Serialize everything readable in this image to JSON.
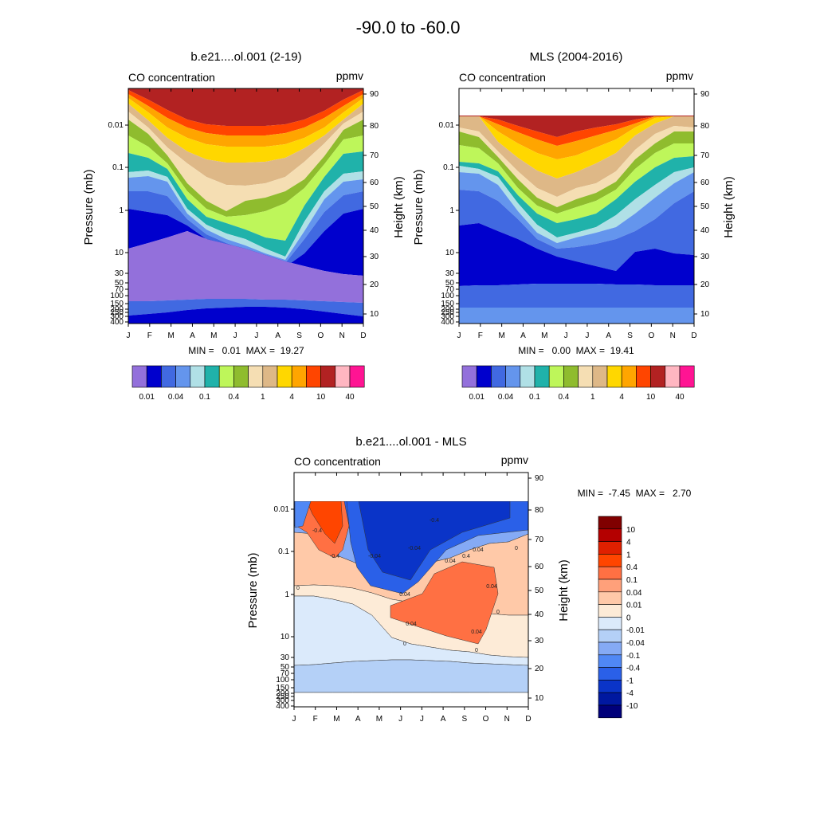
{
  "main_title": "-90.0 to -60.0",
  "months": [
    "J",
    "F",
    "M",
    "A",
    "M",
    "J",
    "J",
    "A",
    "S",
    "O",
    "N",
    "D"
  ],
  "pressure_ticks": [
    "0.01",
    "0.1",
    "1",
    "10",
    "30",
    "50",
    "70",
    "100",
    "150",
    "200",
    "250",
    "300",
    "400"
  ],
  "height_ticks": [
    "90",
    "80",
    "70",
    "60",
    "50",
    "40",
    "30",
    "20",
    "10"
  ],
  "colors": {
    "abs": [
      "#9370db",
      "#0000cd",
      "#4169e1",
      "#6495ed",
      "#b0e0e6",
      "#20b2aa",
      "#bef65a",
      "#8fbc2e",
      "#f5deb3",
      "#deb887",
      "#ffd700",
      "#ffa500",
      "#ff4500",
      "#b22222",
      "#ffb6c1",
      "#ff1493"
    ],
    "diff": [
      "#800000",
      "#b40000",
      "#e02000",
      "#ff4500",
      "#ff7043",
      "#ffa07a",
      "#ffc9a8",
      "#fdebd7",
      "#dbeafb",
      "#b4d0f7",
      "#85aaf5",
      "#5088f5",
      "#2a60e8",
      "#0a34c8",
      "#0018a0",
      "#00007a"
    ]
  },
  "panels": [
    {
      "title": "b.e21....ol.001 (2-19)",
      "left_label": "CO concentration",
      "right_label": "ppmv",
      "y_label": "Pressure (mb)",
      "y2_label": "Height (km)",
      "stats": "MIN =   0.01  MAX =  19.27"
    },
    {
      "title": "MLS (2004-2016)",
      "left_label": "CO concentration",
      "right_label": "ppmv",
      "y_label": "Pressure (mb)",
      "y2_label": "Height (km)",
      "stats": "MIN =   0.00  MAX =  19.41"
    },
    {
      "title": "b.e21....ol.001 - MLS",
      "left_label": "CO concentration",
      "right_label": "ppmv",
      "y_label": "Pressure (mb)",
      "y2_label": "Height (km)",
      "stats": "MIN =  -7.45  MAX =   2.70"
    }
  ],
  "colorbar_abs_labels": [
    "0.01",
    "0.04",
    "0.1",
    "0.4",
    "1",
    "4",
    "10",
    "40"
  ],
  "colorbar_diff_labels": [
    "10",
    "4",
    "1",
    "0.4",
    "0.1",
    "0.04",
    "0.01",
    "0",
    "-0.01",
    "-0.04",
    "-0.1",
    "-0.4",
    "-1",
    "-4",
    "-10"
  ],
  "contour_labels": [
    "-0.4",
    "-0.4",
    "-0.04",
    "-0.04",
    "-0.4",
    "0.04",
    "0.4",
    "0.04",
    "0.04",
    "0.04",
    "0.04",
    "0",
    "0",
    "0",
    "0.04",
    "0",
    "0"
  ],
  "chart_data": [
    {
      "type": "heatmap",
      "title": "b.e21....ol.001 (2-19)",
      "subtitle": "CO concentration",
      "units": "ppmv",
      "x": [
        "J",
        "F",
        "M",
        "A",
        "M",
        "J",
        "J",
        "A",
        "S",
        "O",
        "N",
        "D"
      ],
      "xlabel": "",
      "ylabel": "Pressure (mb)",
      "y2label": "Height (km)",
      "ylim": [
        400,
        0.002
      ],
      "y_scale": "log",
      "contour_levels": [
        0.01,
        0.02,
        0.04,
        0.06,
        0.1,
        0.2,
        0.4,
        0.6,
        1,
        2,
        4,
        6,
        10,
        20,
        40
      ],
      "min": 0.01,
      "max": 19.27
    },
    {
      "type": "heatmap",
      "title": "MLS (2004-2016)",
      "subtitle": "CO concentration",
      "units": "ppmv",
      "x": [
        "J",
        "F",
        "M",
        "A",
        "M",
        "J",
        "J",
        "A",
        "S",
        "O",
        "N",
        "D"
      ],
      "xlabel": "",
      "ylabel": "Pressure (mb)",
      "y2label": "Height (km)",
      "ylim": [
        400,
        0.002
      ],
      "y_scale": "log",
      "contour_levels": [
        0.01,
        0.02,
        0.04,
        0.06,
        0.1,
        0.2,
        0.4,
        0.6,
        1,
        2,
        4,
        6,
        10,
        20,
        40
      ],
      "min": 0.0,
      "max": 19.41
    },
    {
      "type": "heatmap",
      "title": "b.e21....ol.001 - MLS",
      "subtitle": "CO concentration",
      "units": "ppmv",
      "x": [
        "J",
        "F",
        "M",
        "A",
        "M",
        "J",
        "J",
        "A",
        "S",
        "O",
        "N",
        "D"
      ],
      "xlabel": "",
      "ylabel": "Pressure (mb)",
      "y2label": "Height (km)",
      "ylim": [
        400,
        0.002
      ],
      "y_scale": "log",
      "contour_levels": [
        -10,
        -4,
        -1,
        -0.4,
        -0.1,
        -0.04,
        -0.01,
        0,
        0.01,
        0.04,
        0.1,
        0.4,
        1,
        4,
        10
      ],
      "min": -7.45,
      "max": 2.7
    }
  ]
}
